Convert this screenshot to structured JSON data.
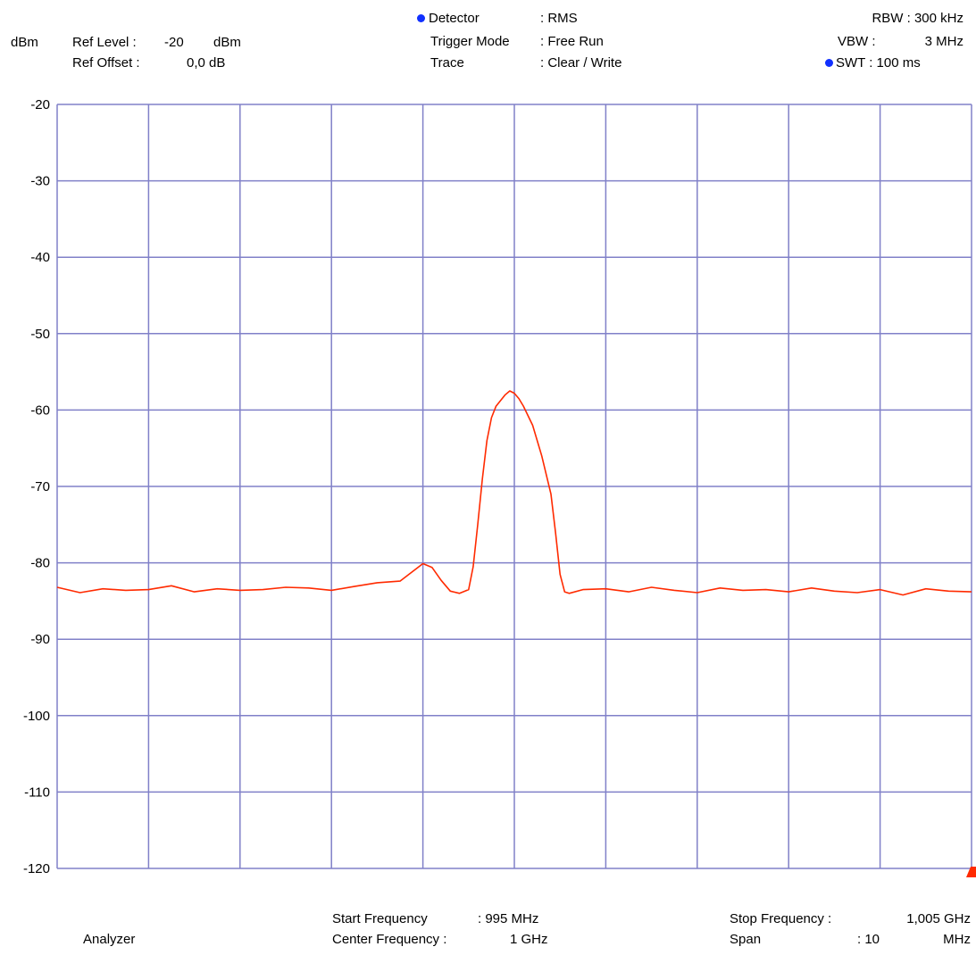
{
  "header": {
    "unit": "dBm",
    "ref_level_label": "Ref Level :",
    "ref_level_value": "-20",
    "ref_level_unit": "dBm",
    "ref_offset_label": "Ref Offset :",
    "ref_offset_value": "0,0 dB",
    "detector_label": "Detector",
    "detector_value": ": RMS",
    "trigger_label": "Trigger Mode",
    "trigger_value": ": Free Run",
    "trace_label": "Trace",
    "trace_value": ": Clear / Write",
    "rbw": "RBW : 300 kHz",
    "vbw_label": "VBW :",
    "vbw_value": "3 MHz",
    "swt": "SWT : 100 ms"
  },
  "footer": {
    "analyzer": "Analyzer",
    "start_label": "Start Frequency",
    "start_value": ": 995 MHz",
    "center_label": "Center Frequency :",
    "center_value": "1 GHz",
    "stop_label": "Stop Frequency :",
    "stop_value": "1,005 GHz",
    "span_label": "Span",
    "span_value": ": 10",
    "span_unit": "MHz"
  },
  "colors": {
    "grid": "#8080c8",
    "trace": "#ff2a00",
    "marker_dot": "#1030ff",
    "corner_marker": "#ff2a00"
  },
  "chart_data": {
    "type": "line",
    "title": "",
    "xlabel": "",
    "ylabel": "dBm",
    "xlim": [
      995,
      1005
    ],
    "ylim": [
      -120,
      -20
    ],
    "x_unit": "MHz",
    "yticks": [
      -20,
      -30,
      -40,
      -50,
      -60,
      -70,
      -80,
      -90,
      -100,
      -110,
      -120
    ],
    "x_divisions": 10,
    "grid": true,
    "series": [
      {
        "name": "",
        "x": [
          995.0,
          995.25,
          995.5,
          995.75,
          996.0,
          996.25,
          996.5,
          996.75,
          997.0,
          997.25,
          997.5,
          997.75,
          998.0,
          998.25,
          998.5,
          998.75,
          999.0,
          999.1,
          999.2,
          999.3,
          999.4,
          999.5,
          999.55,
          999.6,
          999.65,
          999.7,
          999.75,
          999.8,
          999.9,
          999.95,
          1000.0,
          1000.05,
          1000.1,
          1000.2,
          1000.3,
          1000.4,
          1000.45,
          1000.5,
          1000.55,
          1000.6,
          1000.75,
          1001.0,
          1001.25,
          1001.5,
          1001.75,
          1002.0,
          1002.25,
          1002.5,
          1002.75,
          1003.0,
          1003.25,
          1003.5,
          1003.75,
          1004.0,
          1004.25,
          1004.5,
          1004.75,
          1005.0
        ],
        "y": [
          -83.2,
          -83.9,
          -83.4,
          -83.6,
          -83.5,
          -83.0,
          -83.8,
          -83.4,
          -83.6,
          -83.5,
          -83.2,
          -83.3,
          -83.6,
          -83.1,
          -82.6,
          -82.4,
          -80.1,
          -80.6,
          -82.3,
          -83.7,
          -84.0,
          -83.5,
          -80.5,
          -75.0,
          -69.0,
          -64.0,
          -61.0,
          -59.5,
          -58.0,
          -57.5,
          -57.8,
          -58.5,
          -59.5,
          -62.0,
          -66.0,
          -71.0,
          -76.0,
          -81.5,
          -83.8,
          -84.0,
          -83.5,
          -83.4,
          -83.8,
          -83.2,
          -83.6,
          -83.9,
          -83.3,
          -83.6,
          -83.5,
          -83.8,
          -83.3,
          -83.7,
          -83.9,
          -83.5,
          -84.2,
          -83.4,
          -83.7,
          -83.8
        ]
      }
    ]
  }
}
